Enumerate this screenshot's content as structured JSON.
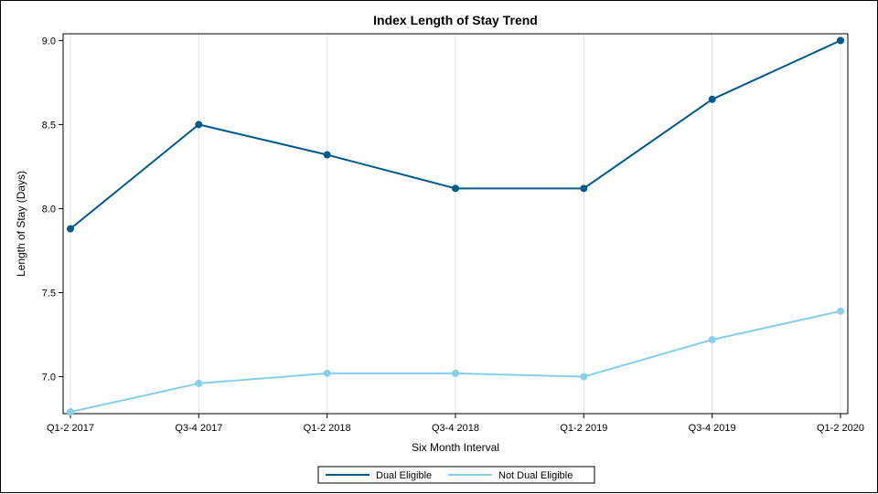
{
  "chart_data": {
    "type": "line",
    "title": "Index Length of Stay Trend",
    "xlabel": "Six Month Interval",
    "ylabel": "Length of Stay (Days)",
    "categories": [
      "Q1-2 2017",
      "Q3-4 2017",
      "Q1-2 2018",
      "Q3-4 2018",
      "Q1-2 2019",
      "Q3-4 2019",
      "Q1-2 2020"
    ],
    "ylim": [
      6.78,
      9.04
    ],
    "yticks": [
      "7.0",
      "7.5",
      "8.0",
      "8.5",
      "9.0"
    ],
    "vertical_grid": true,
    "horizontal_grid": false,
    "legend_position": "bottom",
    "series": [
      {
        "name": "Dual Eligible",
        "color": "#005a8c",
        "values": [
          7.88,
          8.5,
          8.32,
          8.12,
          8.12,
          8.65,
          9.0
        ]
      },
      {
        "name": "Not Dual Eligible",
        "color": "#87ceeb",
        "values": [
          6.79,
          6.96,
          7.02,
          7.02,
          7.0,
          7.22,
          7.39
        ]
      }
    ]
  }
}
